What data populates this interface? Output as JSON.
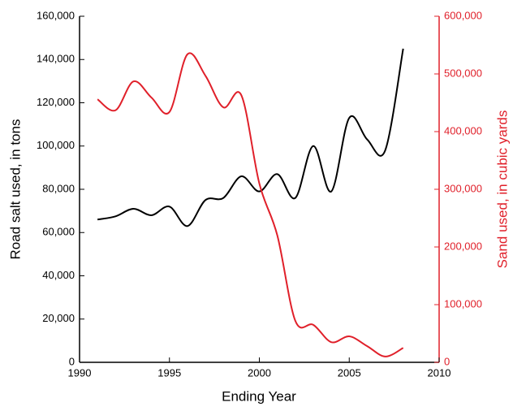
{
  "chart_data": {
    "type": "line",
    "x_label": "Ending Year",
    "y_label": "Road salt used, in tons",
    "y2_label": "Sand used, in cubic yards",
    "x": [
      1991,
      1992,
      1993,
      1994,
      1995,
      1996,
      1997,
      1998,
      1999,
      2000,
      2001,
      2002,
      2003,
      2004,
      2005,
      2006,
      2007,
      2008
    ],
    "series": [
      {
        "name": "Road salt",
        "color": "#000000",
        "axis": "y",
        "values": [
          66000,
          67500,
          71000,
          68000,
          72000,
          63000,
          75000,
          76000,
          86000,
          79000,
          87000,
          76000,
          100000,
          79000,
          113000,
          103000,
          98000,
          145000
        ]
      },
      {
        "name": "Sand",
        "color": "#e0202a",
        "axis": "y2",
        "values": [
          456000,
          437000,
          487000,
          459000,
          434000,
          534000,
          497000,
          442000,
          463000,
          310000,
          220000,
          72000,
          65000,
          35000,
          45000,
          28000,
          10000,
          25000
        ]
      }
    ],
    "xlim": [
      1990,
      2010
    ],
    "xticks": [
      1990,
      1995,
      2000,
      2005,
      2010
    ],
    "ylim": [
      0,
      160000
    ],
    "yticks": [
      0,
      {
        "value": 20000,
        "label": "20,000"
      },
      {
        "value": 40000,
        "label": "40,000"
      },
      {
        "value": 60000,
        "label": "60,000"
      },
      {
        "value": 80000,
        "label": "80,000"
      },
      {
        "value": 100000,
        "label": "100,000"
      },
      {
        "value": 120000,
        "label": "120,000"
      },
      {
        "value": 140000,
        "label": "140,000"
      },
      {
        "value": 160000,
        "label": "160,000"
      }
    ],
    "y2lim": [
      0,
      600000
    ],
    "y2ticks": [
      0,
      {
        "value": 100000,
        "label": "100,000"
      },
      {
        "value": 200000,
        "label": "200,000"
      },
      {
        "value": 300000,
        "label": "300,000"
      },
      {
        "value": 400000,
        "label": "400,000"
      },
      {
        "value": 500000,
        "label": "500,000"
      },
      {
        "value": 600000,
        "label": "600,000"
      }
    ],
    "y2color": "#e0202a"
  }
}
